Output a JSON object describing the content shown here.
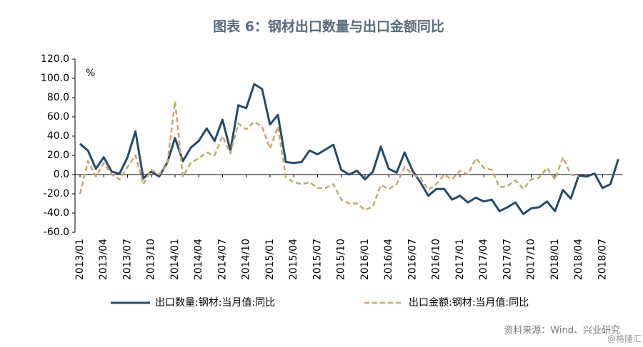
{
  "chart_data": {
    "type": "line",
    "title": "图表 6：钢材出口数量与出口金额同比",
    "unit": "%",
    "source": "资料来源：Wind、兴业研究",
    "watermark": "@格隆汇",
    "categories": [
      "2013/01",
      null,
      null,
      "2013/04",
      null,
      null,
      "2013/07",
      null,
      null,
      "2013/10",
      null,
      null,
      "2014/01",
      null,
      null,
      "2014/04",
      null,
      null,
      "2014/07",
      null,
      null,
      "2014/10",
      null,
      null,
      "2015/01",
      null,
      null,
      "2015/04",
      null,
      null,
      "2015/07",
      null,
      null,
      "2015/10",
      null,
      null,
      "2016/01",
      null,
      null,
      "2016/04",
      null,
      null,
      "2016/07",
      null,
      null,
      "2016/10",
      null,
      null,
      "2017/01",
      null,
      null,
      "2017/04",
      null,
      null,
      "2017/07",
      null,
      null,
      "2017/10",
      null,
      null,
      "2018/01",
      null,
      null,
      "2018/04",
      null,
      null,
      "2018/07",
      null,
      null
    ],
    "series": [
      {
        "name": "出口数量:钢材:当月值:同比",
        "color": "#254a6e",
        "dash": false,
        "values": [
          32,
          25,
          6,
          18,
          3,
          1,
          18,
          45,
          -4,
          3,
          -2,
          12,
          38,
          14,
          28,
          35,
          48,
          35,
          57,
          25,
          72,
          69,
          94,
          89,
          52,
          62,
          13,
          12,
          13,
          25,
          21,
          26,
          31,
          5,
          0,
          4,
          -5,
          3,
          29,
          6,
          2,
          23,
          4,
          -8,
          -22,
          -15,
          -15,
          -26,
          -22,
          -29,
          -24,
          -28,
          -26,
          -38,
          -34,
          -29,
          -41,
          -35,
          -34,
          -28,
          -38,
          -16,
          -25,
          -1,
          -2,
          1,
          -14,
          -10,
          16
        ]
      },
      {
        "name": "出口金额:钢材:当月值:同比",
        "color": "#c8a86a",
        "dash": true,
        "values": [
          -20,
          14,
          -2,
          12,
          0,
          -5,
          8,
          20,
          -10,
          5,
          0,
          10,
          76,
          -2,
          12,
          17,
          23,
          20,
          40,
          22,
          53,
          47,
          55,
          50,
          27,
          50,
          -3,
          -8,
          -10,
          -8,
          -14,
          -14,
          -10,
          -26,
          -30,
          -30,
          -37,
          -33,
          -11,
          -15,
          -10,
          8,
          0,
          -3,
          -16,
          -10,
          0,
          -5,
          4,
          0,
          17,
          7,
          5,
          -13,
          -12,
          -6,
          -15,
          -5,
          -3,
          7,
          -5,
          18,
          0,
          -2,
          null,
          null,
          null,
          null,
          null
        ]
      }
    ],
    "ylim": [
      -60,
      120
    ],
    "yticks": [
      {
        "value": -60,
        "label": "-60.0"
      },
      {
        "value": -40,
        "label": "-40.0"
      },
      {
        "value": -20,
        "label": "-20.0"
      },
      {
        "value": 0,
        "label": "0.0"
      },
      {
        "value": 20,
        "label": "20.0"
      },
      {
        "value": 40,
        "label": "40.0"
      },
      {
        "value": 60,
        "label": "60.0"
      },
      {
        "value": 80,
        "label": "80.0"
      },
      {
        "value": 100,
        "label": "100.0"
      },
      {
        "value": 120,
        "label": "120.0"
      }
    ],
    "grid": false
  }
}
